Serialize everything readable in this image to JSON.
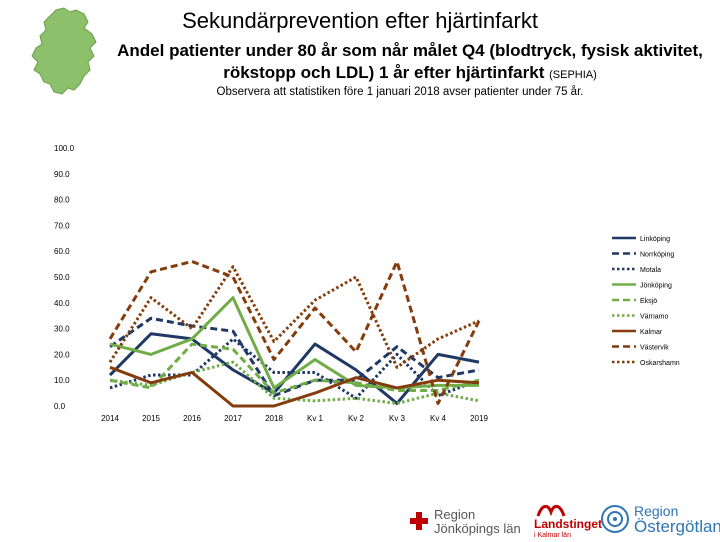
{
  "header": {
    "title": "Sekundärprevention efter hjärtinfarkt",
    "subtitle_main": "Andel patienter under 80 år som når målet Q4 (blodtryck, fysisk aktivitet, rökstopp och  LDL) 1 år efter hjärtinfarkt",
    "subtitle_small": "(SEPHIA)",
    "note": "Observera att statistiken före 1 januari  2018 avser patienter under 75 år."
  },
  "footer": {
    "logo1_line1": "Region",
    "logo1_line2": "Jönköpings län",
    "logo2_line1": "Landstinget",
    "logo2_line2": "i Kalmar län",
    "logo3_line1": "Region",
    "logo3_line2": "Östergötland"
  },
  "colors": {
    "navy": "#1f3864",
    "green": "#70ad47",
    "brown": "#843c0c",
    "map_green": "#8cc06a"
  },
  "chart_data": {
    "type": "line",
    "x": [
      "2014",
      "2015",
      "2016",
      "2017",
      "2018",
      "Kv 1",
      "Kv 2",
      "Kv 3",
      "Kv 4",
      "2019"
    ],
    "y_ticks": [
      "0.0",
      "10.0",
      "20.0",
      "30.0",
      "40.0",
      "50.0",
      "60.0",
      "70.0",
      "80.0",
      "90.0",
      "100.0"
    ],
    "ylim": [
      0,
      100
    ],
    "legend_position": "right",
    "series": [
      {
        "name": "Linköping",
        "color": "#1f3864",
        "dash": "solid",
        "values": [
          12,
          28,
          26,
          14,
          5,
          24,
          14,
          1,
          20,
          17
        ]
      },
      {
        "name": "Norrköping",
        "color": "#1f3864",
        "dash": "dashed",
        "values": [
          23,
          34,
          31,
          29,
          4,
          10,
          10,
          23,
          11,
          14
        ]
      },
      {
        "name": "Motala",
        "color": "#1f3864",
        "dash": "dotted",
        "values": [
          7,
          12,
          12,
          26,
          13,
          13,
          3,
          20,
          4,
          10
        ]
      },
      {
        "name": "Jönköping",
        "color": "#70ad47",
        "dash": "solid",
        "values": [
          24,
          20,
          26,
          42,
          7,
          18,
          8,
          7,
          8,
          8
        ]
      },
      {
        "name": "Eksjö",
        "color": "#70ad47",
        "dash": "dashed",
        "values": [
          10,
          7,
          24,
          22,
          5,
          10,
          9,
          6,
          6,
          10
        ]
      },
      {
        "name": "Värnamo",
        "color": "#70ad47",
        "dash": "dotted",
        "values": [
          10,
          8,
          13,
          17,
          3,
          2,
          3,
          1,
          5,
          2
        ]
      },
      {
        "name": "Kalmar",
        "color": "#843c0c",
        "dash": "solid",
        "values": [
          15,
          9,
          13,
          0,
          0,
          5,
          11,
          7,
          10,
          9
        ]
      },
      {
        "name": "Västervik",
        "color": "#843c0c",
        "dash": "dashed",
        "values": [
          26,
          52,
          56,
          50,
          18,
          38,
          21,
          56,
          1,
          33
        ]
      },
      {
        "name": "Oskarshamn",
        "color": "#843c0c",
        "dash": "dotted",
        "values": [
          17,
          42,
          30,
          54,
          25,
          41,
          50,
          15,
          26,
          33
        ]
      }
    ]
  }
}
